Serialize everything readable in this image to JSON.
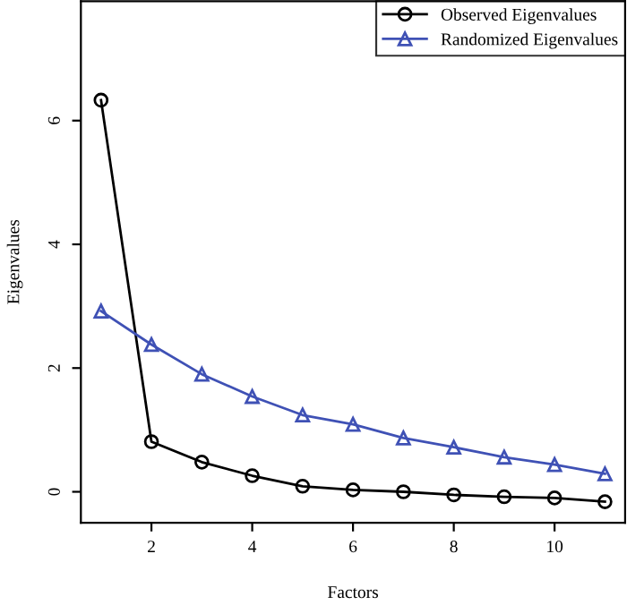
{
  "chart_data": {
    "type": "line",
    "xlabel": "Factors",
    "ylabel": "Eigenvalues",
    "x": [
      1,
      2,
      3,
      4,
      5,
      6,
      7,
      8,
      9,
      10,
      11
    ],
    "series": [
      {
        "name": "Observed Eigenvalues",
        "color": "#000000",
        "marker": "circle",
        "values": [
          6.33,
          0.81,
          0.48,
          0.26,
          0.09,
          0.03,
          0.0,
          -0.05,
          -0.08,
          -0.1,
          -0.16
        ]
      },
      {
        "name": "Randomized Eigenvalues",
        "color": "#3f51b5",
        "marker": "triangle",
        "values": [
          2.92,
          2.38,
          1.9,
          1.54,
          1.24,
          1.09,
          0.87,
          0.72,
          0.56,
          0.44,
          0.29
        ]
      }
    ],
    "xlim": [
      0.6,
      11.4
    ],
    "ylim": [
      -0.5,
      7.93
    ],
    "xticks": [
      2,
      4,
      6,
      8,
      10
    ],
    "yticks": [
      0,
      2,
      4,
      6
    ],
    "grid": false,
    "legend": "top right",
    "line_style": "solid"
  }
}
